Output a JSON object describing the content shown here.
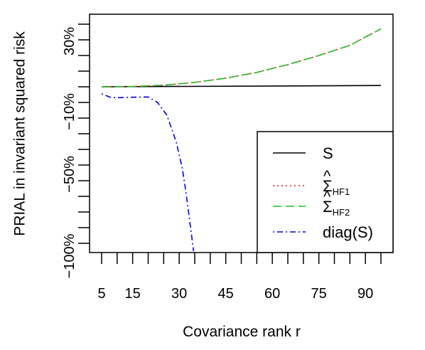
{
  "chart_data": {
    "type": "line",
    "xlabel": "Covariance rank r",
    "ylabel": "PRIAL in invariant squared risk",
    "xlim": [
      5,
      95
    ],
    "ylim": [
      -100,
      40
    ],
    "x_ticks": [
      5,
      10,
      15,
      20,
      25,
      30,
      35,
      40,
      45,
      50,
      55,
      60,
      65,
      70,
      75,
      80,
      85,
      90,
      95
    ],
    "x_tick_labels": [
      {
        "value": 5,
        "label": "5"
      },
      {
        "value": 15,
        "label": "15"
      },
      {
        "value": 30,
        "label": "30"
      },
      {
        "value": 45,
        "label": "45"
      },
      {
        "value": 60,
        "label": "60"
      },
      {
        "value": 75,
        "label": "75"
      },
      {
        "value": 90,
        "label": "90"
      }
    ],
    "y_ticks": [
      -100,
      -90,
      -80,
      -70,
      -60,
      -50,
      -40,
      -30,
      -20,
      -10,
      0,
      10,
      20,
      30,
      40
    ],
    "y_tick_labels": [
      {
        "value": -100,
        "label": "−100%"
      },
      {
        "value": -50,
        "label": "−50%"
      },
      {
        "value": -10,
        "label": "−10%"
      },
      {
        "value": 30,
        "label": "30%"
      }
    ],
    "legend_position": "bottom-right",
    "series": [
      {
        "name": "S",
        "color": "#000000",
        "dash": "solid",
        "x": [
          5,
          95
        ],
        "y": [
          0,
          0.8
        ]
      },
      {
        "name": "Σ",
        "name_sub": "HF1",
        "name_hat": "^",
        "color": "#e41a1c",
        "dash": "dotted",
        "x": [
          5,
          15,
          25,
          35,
          45,
          55,
          65,
          75,
          85,
          95
        ],
        "y": [
          0,
          0.2,
          1.0,
          2.8,
          5.5,
          9.2,
          14.2,
          20.0,
          26.5,
          37.0
        ]
      },
      {
        "name": "Σ",
        "name_sub": "HF2",
        "name_hat": "^",
        "color": "#22bb22",
        "dash": "dashed",
        "x": [
          5,
          15,
          25,
          35,
          45,
          55,
          65,
          75,
          85,
          95
        ],
        "y": [
          0,
          0.2,
          1.0,
          2.8,
          5.5,
          9.2,
          14.2,
          20.0,
          26.5,
          37.0
        ]
      },
      {
        "name": "diag(S)",
        "color": "#0000ee",
        "dash": "dotdash",
        "x": [
          5,
          8,
          10,
          15,
          20,
          23,
          26,
          29,
          31,
          32,
          33,
          34,
          34.6
        ],
        "y": [
          -4.5,
          -6.8,
          -7.0,
          -6.7,
          -6.5,
          -10,
          -18,
          -35,
          -52,
          -65,
          -80,
          -95,
          -105
        ]
      }
    ]
  }
}
